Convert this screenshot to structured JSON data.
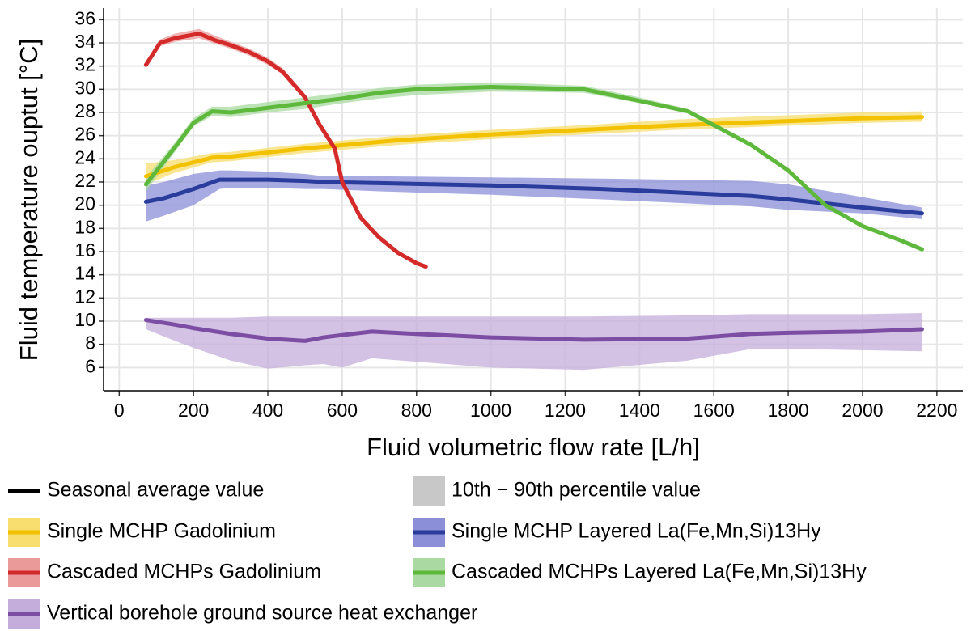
{
  "chart_data": {
    "type": "line",
    "x_label": "Fluid volumetric flow rate [L/h]",
    "y_label": "Fluid temperature ouptut [°C]",
    "xlim": [
      -42,
      2270
    ],
    "ylim": [
      4,
      37
    ],
    "xticks": [
      0,
      200,
      400,
      600,
      800,
      1000,
      1200,
      1400,
      1600,
      1800,
      2000,
      2200
    ],
    "yticks": [
      6,
      8,
      10,
      12,
      14,
      16,
      18,
      20,
      22,
      24,
      26,
      28,
      30,
      32,
      34,
      36
    ],
    "grid": true,
    "legend_line_label": "Seasonal average value",
    "legend_band_label": "10th − 90th percentile value",
    "series": [
      {
        "name": "Single MCHP Gadolinium",
        "color": "#f2c200",
        "band_color": "#f7de6e",
        "x": [
          72,
          150,
          250,
          300,
          500,
          750,
          1000,
          1250,
          1500,
          1750,
          2000,
          2160
        ],
        "values": [
          22.5,
          23.3,
          24.1,
          24.2,
          24.9,
          25.6,
          26.1,
          26.5,
          26.9,
          27.2,
          27.5,
          27.6
        ],
        "lower": [
          21.8,
          22.8,
          23.7,
          23.8,
          24.5,
          25.2,
          25.7,
          26.1,
          26.5,
          26.8,
          27.1,
          27.2
        ],
        "upper": [
          23.6,
          23.9,
          24.5,
          24.6,
          25.3,
          26.0,
          26.5,
          26.9,
          27.4,
          27.7,
          28.0,
          28.1
        ]
      },
      {
        "name": "Single MCHP Layered La(Fe,Mn,Si)13Hy",
        "color": "#2a3d9c",
        "band_color": "#8b8fd8",
        "x": [
          72,
          120,
          200,
          270,
          300,
          400,
          500,
          550,
          700,
          1000,
          1300,
          1500,
          1700,
          1800,
          2000,
          2160
        ],
        "values": [
          20.3,
          20.6,
          21.4,
          22.2,
          22.2,
          22.2,
          22.1,
          22.0,
          21.9,
          21.7,
          21.4,
          21.1,
          20.8,
          20.5,
          19.8,
          19.3
        ],
        "lower": [
          18.6,
          19.1,
          20.0,
          21.4,
          21.5,
          21.5,
          21.4,
          21.4,
          21.2,
          20.9,
          20.5,
          20.2,
          19.9,
          19.6,
          19.3,
          18.8
        ],
        "upper": [
          21.7,
          22.0,
          22.7,
          23.0,
          23.0,
          22.9,
          22.7,
          22.5,
          22.5,
          22.4,
          22.3,
          22.2,
          22.1,
          21.8,
          20.7,
          19.8
        ]
      },
      {
        "name": "Cascaded MCHPs Gadolinium",
        "color": "#d42a2a",
        "band_color": "#eb9a9a",
        "x": [
          72,
          110,
          150,
          215,
          260,
          300,
          350,
          400,
          440,
          500,
          540,
          580,
          600,
          650,
          700,
          750,
          800,
          825
        ],
        "values": [
          32.1,
          34.0,
          34.4,
          34.8,
          34.2,
          33.8,
          33.2,
          32.4,
          31.5,
          29.3,
          26.9,
          24.9,
          22.0,
          18.9,
          17.2,
          15.9,
          15.0,
          14.7
        ],
        "lower": [
          32.0,
          33.7,
          34.1,
          34.4,
          33.9,
          33.5,
          32.9,
          32.1,
          31.3,
          29.1,
          26.8,
          24.8,
          21.9,
          18.8,
          17.1,
          15.8,
          14.9,
          14.6
        ],
        "upper": [
          32.2,
          34.3,
          34.8,
          35.2,
          34.6,
          34.1,
          33.5,
          32.7,
          31.8,
          29.6,
          27.1,
          25.1,
          22.2,
          19.0,
          17.3,
          16.0,
          15.1,
          14.8
        ]
      },
      {
        "name": "Cascaded MCHPs Layered La(Fe,Mn,Si)13Hy",
        "color": "#5db83b",
        "band_color": "#aad9a1",
        "x": [
          72,
          150,
          200,
          250,
          300,
          400,
          500,
          600,
          700,
          800,
          1000,
          1250,
          1400,
          1530,
          1600,
          1700,
          1800,
          1900,
          2000,
          2100,
          2160
        ],
        "values": [
          21.8,
          25.0,
          27.1,
          28.1,
          28.0,
          28.4,
          28.8,
          29.2,
          29.7,
          30.0,
          30.2,
          30.0,
          29.0,
          28.1,
          26.9,
          25.2,
          23.0,
          20.0,
          18.2,
          17.0,
          16.2
        ],
        "lower": [
          21.2,
          24.6,
          26.8,
          27.7,
          27.6,
          28.0,
          28.3,
          28.8,
          29.2,
          29.5,
          29.8,
          29.7,
          28.8,
          28.0,
          26.8,
          25.1,
          22.9,
          19.9,
          18.1,
          16.9,
          16.1
        ],
        "upper": [
          22.4,
          25.4,
          27.5,
          28.5,
          28.5,
          28.9,
          29.3,
          29.7,
          30.1,
          30.4,
          30.6,
          30.3,
          29.3,
          28.3,
          27.0,
          25.3,
          23.1,
          20.1,
          18.3,
          17.1,
          16.3
        ]
      },
      {
        "name": "Vertical borehole ground source heat exchanger",
        "color": "#7b4ea3",
        "band_color": "#c5addb",
        "x": [
          72,
          150,
          200,
          300,
          400,
          500,
          550,
          600,
          680,
          800,
          1000,
          1250,
          1530,
          1700,
          1800,
          2000,
          2160
        ],
        "values": [
          10.1,
          9.7,
          9.4,
          8.9,
          8.5,
          8.3,
          8.6,
          8.8,
          9.1,
          8.9,
          8.6,
          8.4,
          8.5,
          8.9,
          9.0,
          9.1,
          9.3
        ],
        "lower": [
          9.3,
          8.3,
          7.7,
          6.6,
          5.9,
          6.2,
          6.3,
          6.0,
          6.8,
          6.5,
          6.0,
          5.8,
          6.6,
          7.6,
          7.6,
          7.5,
          7.4
        ],
        "upper": [
          10.3,
          10.3,
          10.3,
          10.3,
          10.4,
          10.4,
          10.4,
          10.4,
          10.4,
          10.4,
          10.4,
          10.4,
          10.5,
          10.6,
          10.6,
          10.6,
          10.7
        ]
      }
    ]
  }
}
